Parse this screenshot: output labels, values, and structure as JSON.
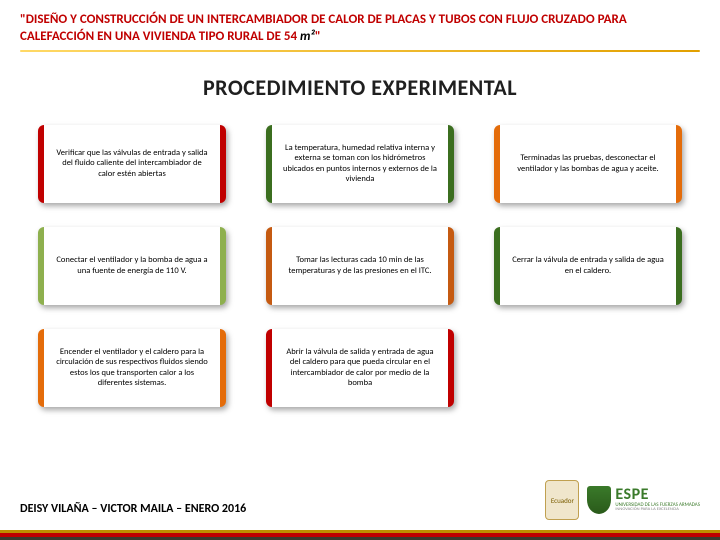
{
  "header": {
    "title_prefix": "\"DISEÑO Y CONSTRUCCIÓN DE UN INTERCAMBIADOR DE CALOR DE PLACAS Y TUBOS CON FLUJO CRUZADO  PARA CALEFACCIÓN EN UNA VIVIENDA TIPO RURAL DE 54 ",
    "title_m2": "m²",
    "title_suffix": "\"",
    "underline_gradient_start": "#ffd966",
    "underline_gradient_end": "#e2a000"
  },
  "section_title": "PROCEDIMIENTO EXPERIMENTAL",
  "grid": {
    "columns": 3,
    "rows": 3,
    "cards": [
      {
        "text": "Verificar que las válvulas de entrada y salida del fluido caliente del intercambiador de calor estén abiertas",
        "border_color": "#c00000"
      },
      {
        "text": "La temperatura, humedad relativa interna y externa se toman con los hidrómetros ubicados en puntos internos y externos de la vivienda",
        "border_color": "#3b6e1f"
      },
      {
        "text": "Terminadas las pruebas, desconectar el ventilador y las bombas de agua y aceite.",
        "border_color": "#e46c0a"
      },
      {
        "text": "Conectar el ventilador y  la bomba de agua a una fuente de energía de 110 V.",
        "border_color": "#8eb04e"
      },
      {
        "text": "Tomar las lecturas cada 10 min de las temperaturas y de las presiones en el ITC.",
        "border_color": "#c55a11"
      },
      {
        "text": "Cerrar la válvula de entrada y salida de agua en el caldero.",
        "border_color": "#3b6e1f"
      },
      {
        "text": "Encender el ventilador y el caldero para la circulación de sus respectivos fluidos siendo estos los que transporten calor a los diferentes sistemas.",
        "border_color": "#e46c0a"
      },
      {
        "text": "Abrir la válvula de salida y entrada de agua del caldero para que pueda circular en el intercambiador de calor por medio de la bomba",
        "border_color": "#c00000"
      },
      {
        "text": "",
        "border_color": "transparent",
        "empty": true
      }
    ]
  },
  "footer": {
    "stripe_colors": [
      "#bf9000",
      "#c00000",
      "#3b3b2e"
    ],
    "authors": "DEISY VILAÑA – VICTOR MAILA – ENERO 2016",
    "logo_badge_text": "Ecuador",
    "espe_main": "ESPE",
    "espe_sub": "UNIVERSIDAD DE LAS FUERZAS ARMADAS",
    "espe_sub2": "INNOVACIÓN PARA LA EXCELENCIA"
  },
  "colors": {
    "title_red": "#c00000",
    "text_black": "#000000",
    "espe_green": "#3a7a2a"
  }
}
